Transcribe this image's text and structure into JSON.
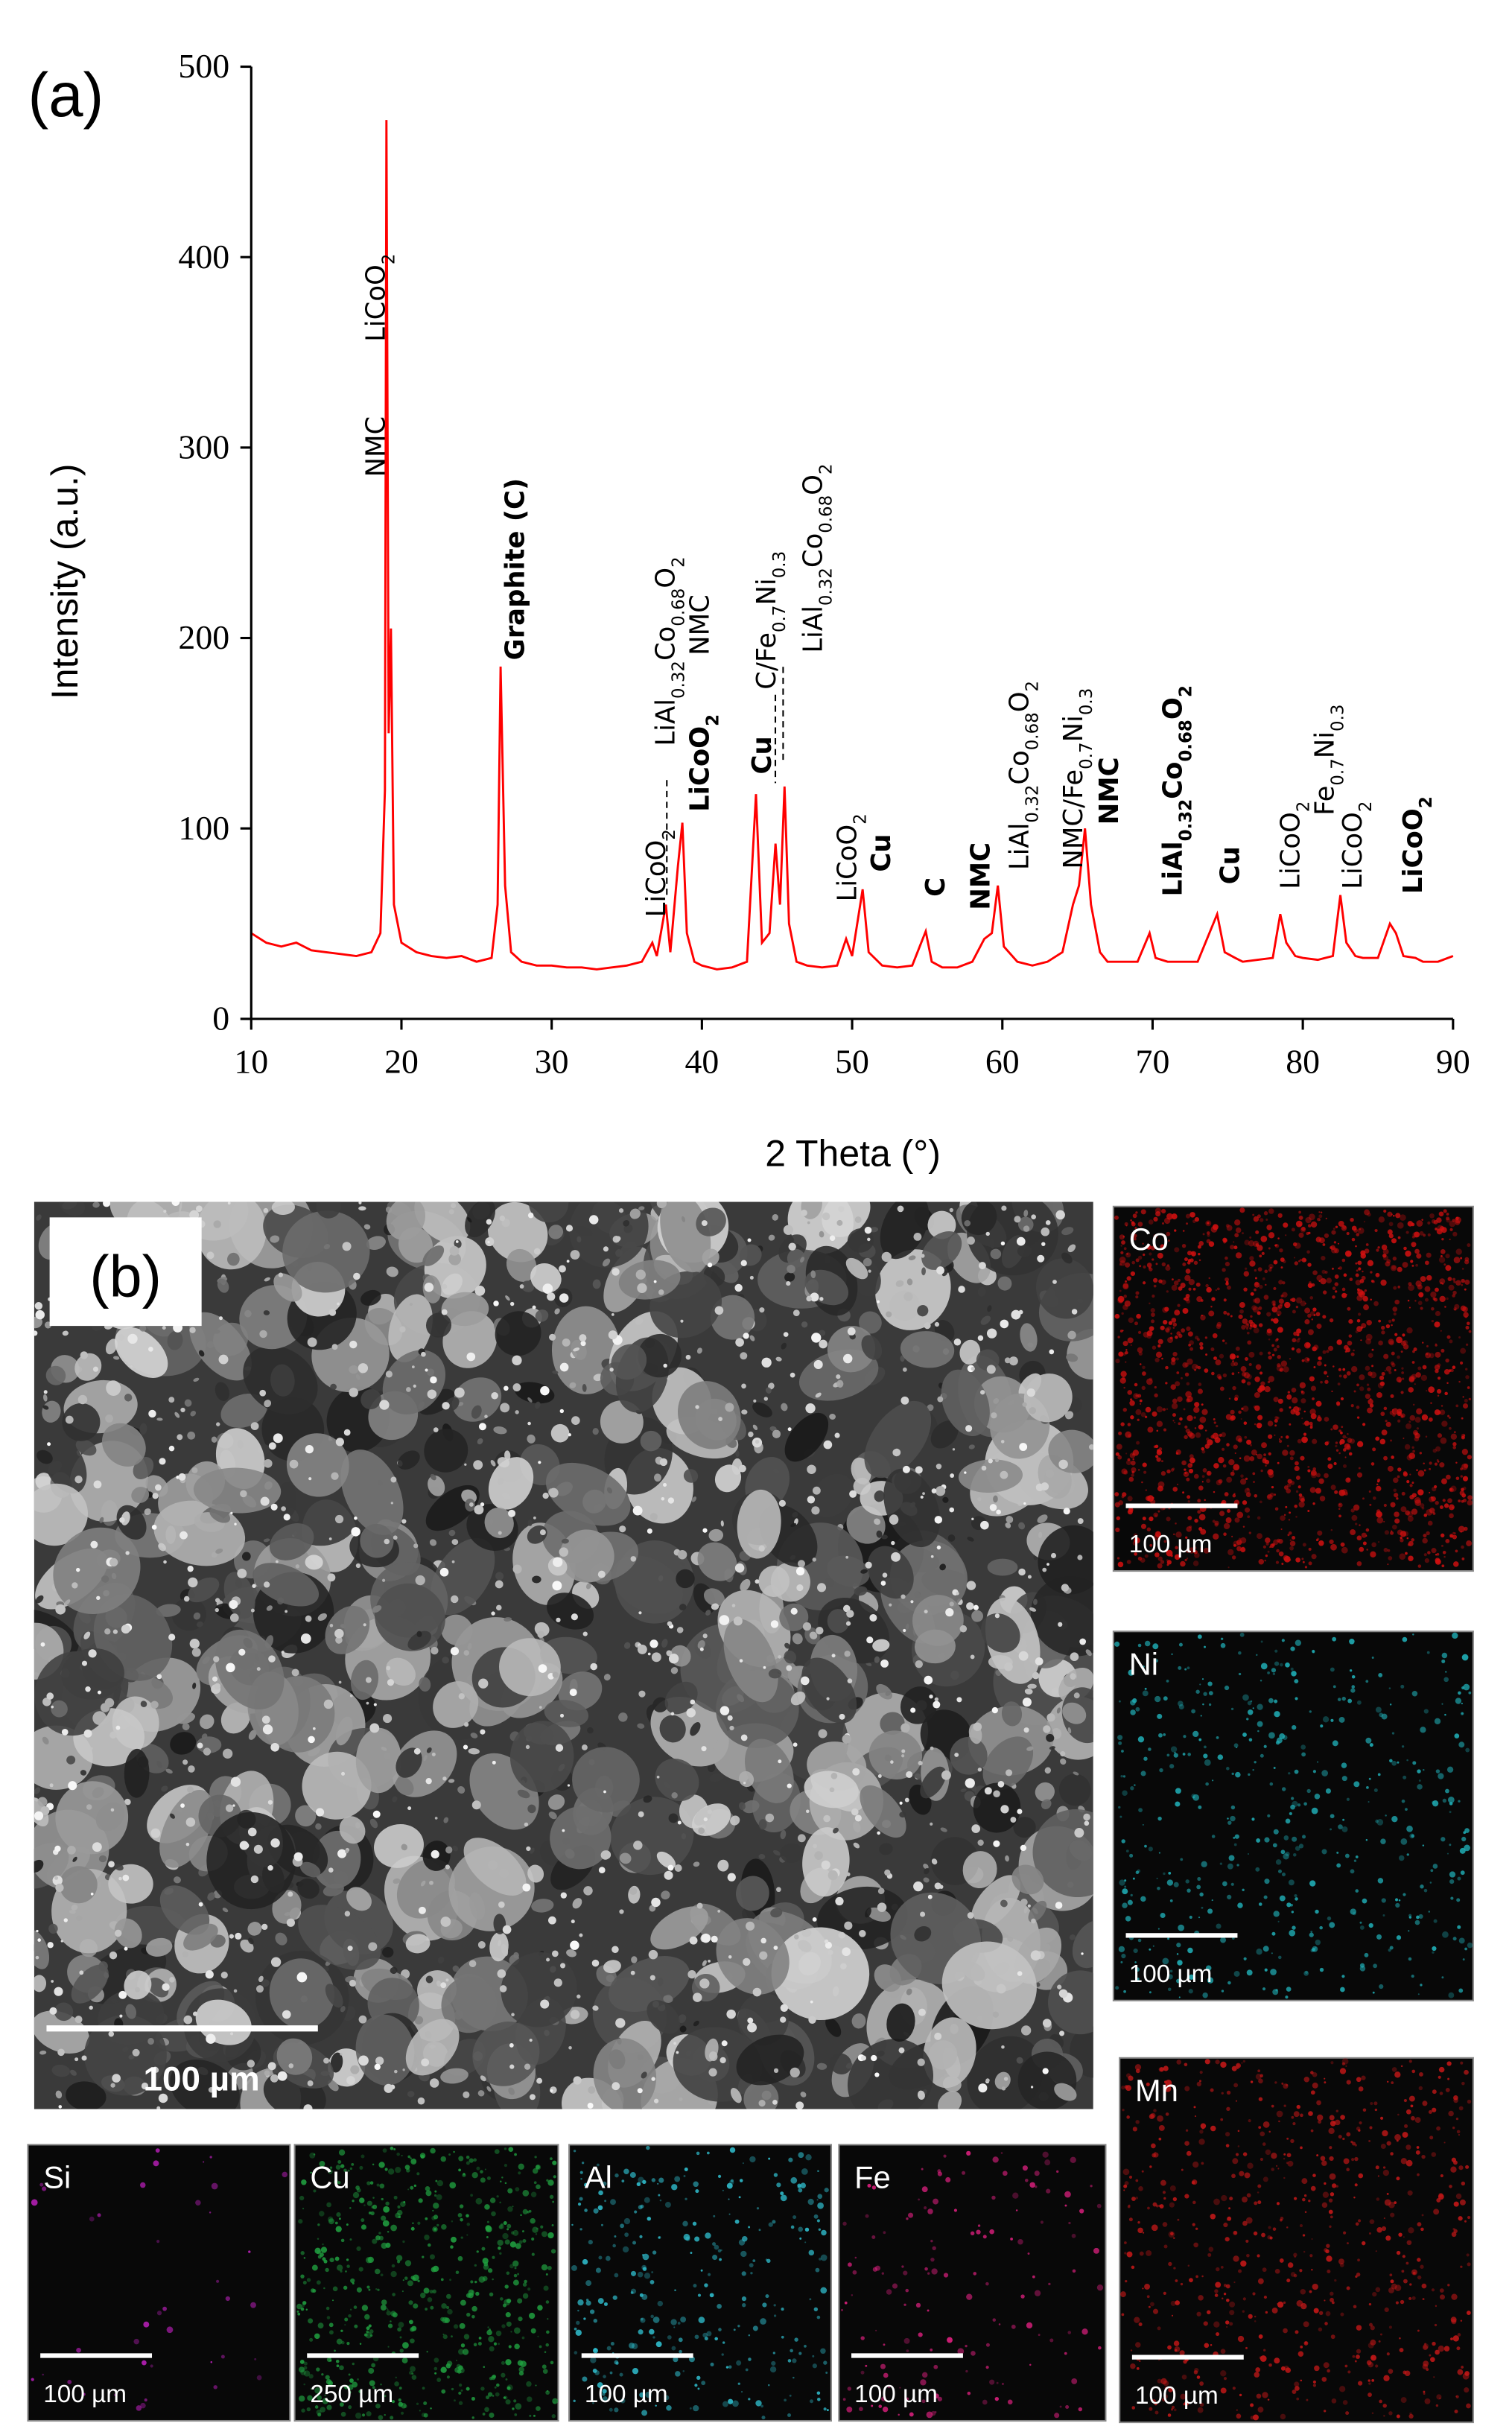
{
  "chart_data": {
    "type": "line",
    "panel_label": "(a)",
    "xlabel": "2 Theta (°)",
    "ylabel": "Intensity (a.u.)",
    "x": [
      10,
      11,
      12,
      13,
      14,
      15,
      16,
      17,
      18,
      18.6,
      18.9,
      19.0,
      19.15,
      19.3,
      19.5,
      20,
      21,
      22,
      23,
      24,
      25,
      26,
      26.4,
      26.6,
      26.9,
      27.3,
      28,
      29,
      30,
      31,
      32,
      33,
      34,
      35,
      36,
      36.7,
      37,
      37.6,
      37.9,
      38.4,
      38.7,
      39,
      39.5,
      40,
      41,
      42,
      43,
      43.6,
      44,
      44.5,
      44.9,
      45.2,
      45.5,
      45.8,
      46.3,
      47,
      48,
      49,
      49.6,
      50,
      50.7,
      51.1,
      52,
      53,
      54,
      54.9,
      55.3,
      56,
      57,
      58,
      58.8,
      59.3,
      59.7,
      60.1,
      61,
      62,
      63,
      64,
      64.7,
      65.1,
      65.5,
      65.9,
      66.5,
      67,
      68,
      69,
      69.8,
      70.2,
      71,
      72,
      73,
      74.3,
      74.8,
      75.5,
      76,
      77,
      78,
      78.5,
      78.9,
      79.5,
      80,
      81,
      82,
      82.5,
      82.9,
      83.5,
      84,
      85,
      85.8,
      86.2,
      86.7,
      87.5,
      88,
      89,
      90
    ],
    "series": [
      {
        "color": "#ff0000",
        "values": [
          45,
          40,
          38,
          40,
          36,
          35,
          34,
          33,
          35,
          45,
          120,
          472,
          150,
          205,
          60,
          40,
          35,
          33,
          32,
          33,
          30,
          32,
          60,
          185,
          70,
          35,
          30,
          28,
          28,
          27,
          27,
          26,
          27,
          28,
          30,
          40,
          33,
          60,
          35,
          80,
          103,
          45,
          30,
          28,
          26,
          27,
          30,
          118,
          40,
          45,
          92,
          60,
          122,
          50,
          30,
          28,
          27,
          28,
          42,
          33,
          68,
          35,
          28,
          27,
          28,
          46,
          30,
          27,
          27,
          30,
          42,
          45,
          70,
          38,
          30,
          28,
          30,
          35,
          60,
          70,
          100,
          60,
          35,
          30,
          30,
          30,
          45,
          32,
          30,
          30,
          30,
          55,
          35,
          32,
          30,
          31,
          32,
          55,
          40,
          33,
          32,
          31,
          33,
          65,
          40,
          33,
          32,
          32,
          50,
          45,
          33,
          32,
          30,
          30,
          33
        ]
      }
    ],
    "xlim": [
      10,
      90
    ],
    "xticks": [
      10,
      20,
      30,
      40,
      50,
      60,
      70,
      80,
      90
    ],
    "ylim": [
      0,
      500
    ],
    "yticks": [
      0,
      100,
      200,
      300,
      400,
      500
    ],
    "annotations": [
      "NMC",
      "LiCoO2",
      "Graphite (C)",
      "LiCoO2",
      "LiAl0.32Co0.68O2",
      "NMC",
      "LiCoO2",
      "Cu",
      "C/Fe0.7Ni0.3",
      "LiAl0.32Co0.68O2",
      "LiCoO2",
      "Cu",
      "C",
      "NMC",
      "LiAl0.32Co0.68O2",
      "NMC/Fe0.7Ni0.3",
      "NMC",
      "LiAl0.32Co0.68O2",
      "Cu",
      "LiCoO2",
      "Fe0.7Ni0.3",
      "LiCoO2",
      "LiCoO2"
    ]
  },
  "sem_panel": {
    "panel_label": "(b)",
    "scale_bar": "100 µm",
    "maps": [
      {
        "element": "Co",
        "scale_bar": "100 µm",
        "color": "#d01010"
      },
      {
        "element": "Ni",
        "scale_bar": "100 µm",
        "color": "#20b0b8"
      },
      {
        "element": "Mn",
        "scale_bar": "100 µm",
        "color": "#c81818"
      },
      {
        "element": "Si",
        "scale_bar": "100 µm",
        "color": "#c020c0"
      },
      {
        "element": "Cu",
        "scale_bar": "250 µm",
        "color": "#20a040"
      },
      {
        "element": "Al",
        "scale_bar": "100 µm",
        "color": "#30c0d0"
      },
      {
        "element": "Fe",
        "scale_bar": "100 µm",
        "color": "#e02080"
      }
    ]
  }
}
